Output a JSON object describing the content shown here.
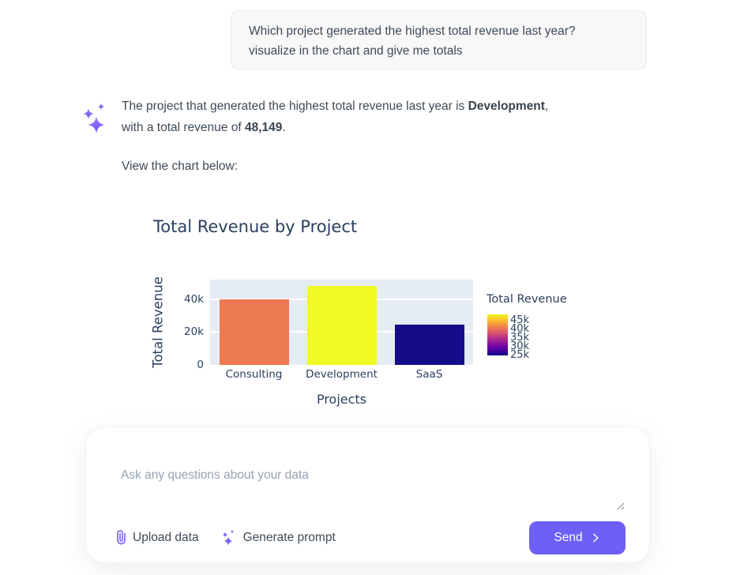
{
  "user_message": {
    "lines": [
      "Which project generated the highest total revenue last year?",
      "visualize in the chart and give me totals"
    ]
  },
  "assistant": {
    "message_lines": [
      [
        {
          "t": "The project that generated the highest total revenue last year is "
        },
        {
          "t": "Development",
          "b": true
        },
        {
          "t": ","
        }
      ],
      [
        {
          "t": "with a total revenue of "
        },
        {
          "t": "48,149",
          "b": true
        },
        {
          "t": "."
        }
      ]
    ],
    "view_chart_text": "View the chart below:"
  },
  "chart_data": {
    "type": "bar",
    "title": "Total Revenue by Project",
    "xlabel": "Projects",
    "ylabel": "Total Revenue",
    "categories": [
      "Consulting",
      "Development",
      "SaaS"
    ],
    "values": [
      40000,
      48149,
      24500
    ],
    "bar_colors": [
      "#ED7953",
      "#F0F921",
      "#140C88"
    ],
    "ylim": [
      0,
      52000
    ],
    "yticks": [
      {
        "label": "0",
        "value": 0
      },
      {
        "label": "20k",
        "value": 20000
      },
      {
        "label": "40k",
        "value": 40000
      }
    ],
    "plot_bg": "#E5ECF6",
    "grid_color": "#FFFFFF",
    "text_color": "#2A3F5F",
    "legend_position": "right",
    "colorbar": {
      "title": "Total Revenue",
      "ticks": [
        "45k",
        "40k",
        "35k",
        "30k",
        "25k"
      ],
      "tick_values": [
        45000,
        40000,
        35000,
        30000,
        25000
      ],
      "min": 24500,
      "max": 48149,
      "gradient": [
        "#F0F921",
        "#FCA636",
        "#E16462",
        "#B12A90",
        "#6A00A8",
        "#0D0887"
      ]
    }
  },
  "composer": {
    "placeholder": "Ask any questions about your data",
    "upload_label": "Upload data",
    "generate_label": "Generate prompt",
    "send_label": "Send"
  },
  "colors": {
    "accent": "#6E5FF6",
    "icon_purple": "#7A5CF5"
  }
}
